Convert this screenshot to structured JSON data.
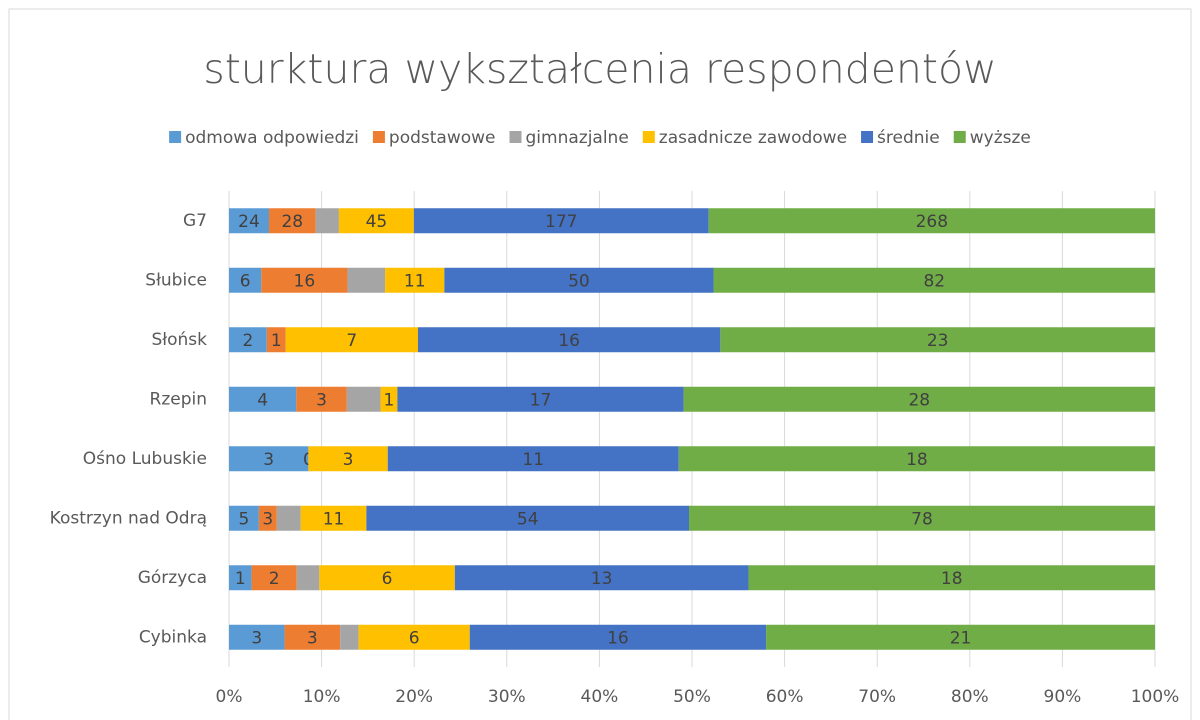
{
  "chart_data": {
    "type": "bar100h",
    "title": "sturktura wykształcenia respondentów",
    "categories": [
      "G7",
      "Słubice",
      "Słońsk",
      "Rzepin",
      "Ośno Lubuskie",
      "Kostrzyn nad Odrą",
      "Górzyca",
      "Cybinka"
    ],
    "series": [
      {
        "name": "odmowa odpowiedzi",
        "color": "#5b9bd5",
        "values": [
          24,
          6,
          2,
          4,
          3,
          5,
          1,
          3
        ]
      },
      {
        "name": "podstawowe",
        "color": "#ed7d31",
        "values": [
          28,
          16,
          1,
          3,
          0,
          3,
          2,
          3
        ]
      },
      {
        "name": "gimnazjalne",
        "color": "#a5a5a5",
        "values": [
          14,
          7,
          0,
          2,
          0,
          4,
          1,
          1
        ],
        "show_labels": false
      },
      {
        "name": "zasadnicze zawodowe",
        "color": "#ffc000",
        "values": [
          45,
          11,
          7,
          1,
          3,
          11,
          6,
          6
        ]
      },
      {
        "name": "średnie",
        "color": "#4472c4",
        "values": [
          177,
          50,
          16,
          17,
          11,
          54,
          13,
          16
        ]
      },
      {
        "name": "wyższe",
        "color": "#70ad47",
        "values": [
          268,
          82,
          23,
          28,
          18,
          78,
          18,
          21
        ]
      }
    ],
    "xlim": [
      0,
      100
    ],
    "xticks": [
      {
        "value": 0,
        "label": "0%"
      },
      {
        "value": 10,
        "label": "10%"
      },
      {
        "value": 20,
        "label": "20%"
      },
      {
        "value": 30,
        "label": "30%"
      },
      {
        "value": 40,
        "label": "40%"
      },
      {
        "value": 50,
        "label": "50%"
      },
      {
        "value": 60,
        "label": "60%"
      },
      {
        "value": 70,
        "label": "70%"
      },
      {
        "value": 80,
        "label": "80%"
      },
      {
        "value": 90,
        "label": "90%"
      },
      {
        "value": 100,
        "label": "100%"
      }
    ],
    "grid": true,
    "legend": "top"
  }
}
